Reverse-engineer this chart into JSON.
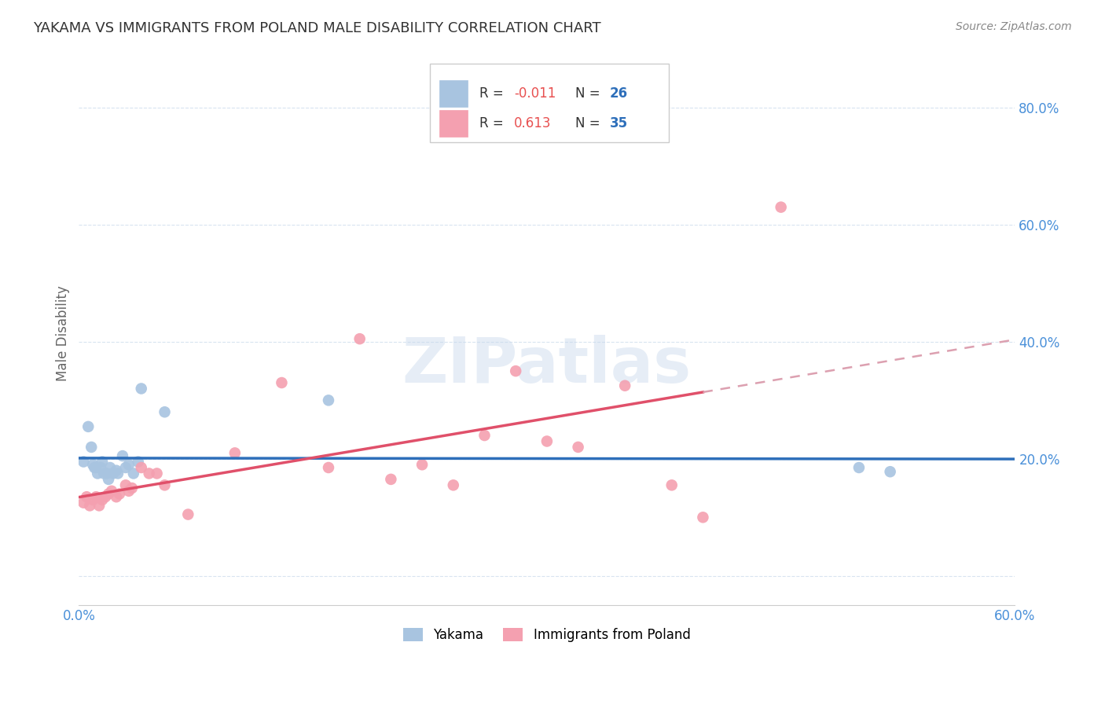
{
  "title": "YAKAMA VS IMMIGRANTS FROM POLAND MALE DISABILITY CORRELATION CHART",
  "source": "Source: ZipAtlas.com",
  "ylabel": "Male Disability",
  "watermark": "ZIPatlas",
  "xlim": [
    0.0,
    0.6
  ],
  "ylim": [
    -0.05,
    0.88
  ],
  "yakama_color": "#a8c4e0",
  "poland_color": "#f4a0b0",
  "trendline_yakama_color": "#2e6fba",
  "trendline_poland_solid_color": "#e0506a",
  "trendline_poland_dashed_color": "#dca0b0",
  "axis_tick_color": "#4a90d9",
  "title_color": "#333333",
  "legend_r_yakama": "-0.011",
  "legend_n_yakama": "26",
  "legend_r_poland": "0.613",
  "legend_n_poland": "35",
  "yakama_x": [
    0.003,
    0.006,
    0.008,
    0.009,
    0.01,
    0.011,
    0.012,
    0.014,
    0.015,
    0.016,
    0.018,
    0.019,
    0.02,
    0.022,
    0.024,
    0.025,
    0.028,
    0.03,
    0.032,
    0.035,
    0.038,
    0.04,
    0.055,
    0.16,
    0.5,
    0.52
  ],
  "yakama_y": [
    0.195,
    0.255,
    0.22,
    0.19,
    0.185,
    0.185,
    0.175,
    0.185,
    0.195,
    0.175,
    0.175,
    0.165,
    0.185,
    0.175,
    0.18,
    0.175,
    0.205,
    0.185,
    0.19,
    0.175,
    0.195,
    0.32,
    0.28,
    0.3,
    0.185,
    0.178
  ],
  "poland_x": [
    0.003,
    0.005,
    0.007,
    0.009,
    0.011,
    0.013,
    0.015,
    0.017,
    0.019,
    0.021,
    0.024,
    0.026,
    0.03,
    0.032,
    0.034,
    0.04,
    0.045,
    0.05,
    0.055,
    0.07,
    0.1,
    0.13,
    0.16,
    0.18,
    0.2,
    0.22,
    0.24,
    0.26,
    0.28,
    0.3,
    0.32,
    0.35,
    0.38,
    0.4,
    0.45
  ],
  "poland_y": [
    0.125,
    0.135,
    0.12,
    0.13,
    0.135,
    0.12,
    0.13,
    0.135,
    0.14,
    0.145,
    0.135,
    0.14,
    0.155,
    0.145,
    0.15,
    0.185,
    0.175,
    0.175,
    0.155,
    0.105,
    0.21,
    0.33,
    0.185,
    0.405,
    0.165,
    0.19,
    0.155,
    0.24,
    0.35,
    0.23,
    0.22,
    0.325,
    0.155,
    0.1,
    0.63
  ],
  "background_color": "#ffffff"
}
